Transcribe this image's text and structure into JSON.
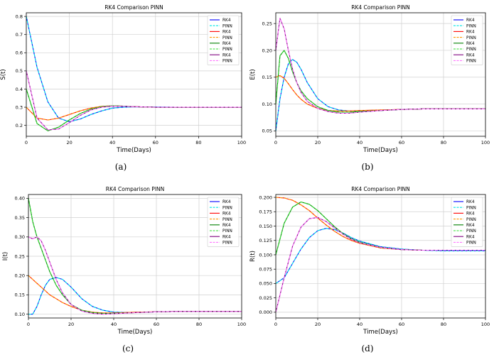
{
  "figure": {
    "subplots": [
      {
        "id": "a",
        "caption": "(a)",
        "title": "RK4 Comparison PINN",
        "xlabel": "Time(Days)",
        "ylabel": "S(t)",
        "legend": [
          "RK4",
          "PINN",
          "RK4",
          "PINN",
          "RK4",
          "PINN",
          "RK4",
          "PINN"
        ]
      },
      {
        "id": "b",
        "caption": "(b)",
        "title": "RK4 Comparison PINN",
        "xlabel": "Time(Days)",
        "ylabel": "E(t)",
        "legend": [
          "RK4",
          "PINN",
          "RK4",
          "PINN",
          "RK4",
          "PINN",
          "RK4",
          "PINN"
        ]
      },
      {
        "id": "c",
        "caption": "(c)",
        "title": "RK4 Comparison PINN",
        "xlabel": "Time(Days)",
        "ylabel": "I(t)",
        "legend": [
          "RK4",
          "PINN",
          "RK4",
          "PINN",
          "RK4",
          "PINN",
          "RK4",
          "PINN"
        ]
      },
      {
        "id": "d",
        "caption": "(d)",
        "title": "RK4 Comparison PINN",
        "xlabel": "Time(Days)",
        "ylabel": "R(t)",
        "legend": [
          "RK4",
          "PINN",
          "RK4",
          "PINN",
          "RK4",
          "PINN",
          "RK4",
          "PINN"
        ]
      }
    ]
  },
  "chart_data": [
    {
      "type": "line",
      "title": "RK4 Comparison PINN",
      "xlabel": "Time(Days)",
      "ylabel": "S(t)",
      "xlim": [
        0,
        100
      ],
      "ylim": [
        0.14,
        0.82
      ],
      "xticks": [
        0,
        20,
        40,
        60,
        80,
        100
      ],
      "yticks": [
        0.2,
        0.3,
        0.4,
        0.5,
        0.6,
        0.7,
        0.8
      ],
      "tick_decimals": 1,
      "grid": true,
      "legend_position": "top-right",
      "x": [
        0,
        5,
        10,
        15,
        20,
        25,
        30,
        35,
        40,
        45,
        50,
        60,
        70,
        80,
        90,
        100
      ],
      "series": [
        {
          "name": "RK4",
          "color": "#0000ff",
          "dash": "solid",
          "values": [
            0.8,
            0.52,
            0.33,
            0.24,
            0.22,
            0.235,
            0.26,
            0.28,
            0.295,
            0.3,
            0.302,
            0.301,
            0.3,
            0.3,
            0.3,
            0.3
          ]
        },
        {
          "name": "PINN",
          "color": "#00e5e5",
          "dash": "dashed",
          "values": [
            0.8,
            0.52,
            0.33,
            0.24,
            0.22,
            0.235,
            0.26,
            0.28,
            0.295,
            0.3,
            0.302,
            0.301,
            0.3,
            0.3,
            0.3,
            0.3
          ]
        },
        {
          "name": "RK4",
          "color": "#ff0000",
          "dash": "solid",
          "values": [
            0.3,
            0.24,
            0.23,
            0.24,
            0.26,
            0.28,
            0.295,
            0.305,
            0.308,
            0.306,
            0.303,
            0.3,
            0.3,
            0.3,
            0.3,
            0.3
          ]
        },
        {
          "name": "PINN",
          "color": "#ff9900",
          "dash": "dashed",
          "values": [
            0.3,
            0.24,
            0.23,
            0.24,
            0.26,
            0.28,
            0.295,
            0.305,
            0.308,
            0.306,
            0.303,
            0.3,
            0.3,
            0.3,
            0.3,
            0.3
          ]
        },
        {
          "name": "RK4",
          "color": "#008000",
          "dash": "solid",
          "values": [
            0.4,
            0.21,
            0.17,
            0.19,
            0.23,
            0.265,
            0.29,
            0.303,
            0.308,
            0.306,
            0.303,
            0.3,
            0.3,
            0.3,
            0.3,
            0.3
          ]
        },
        {
          "name": "PINN",
          "color": "#33dd33",
          "dash": "dashed",
          "values": [
            0.4,
            0.21,
            0.17,
            0.19,
            0.23,
            0.265,
            0.29,
            0.303,
            0.308,
            0.306,
            0.303,
            0.3,
            0.3,
            0.3,
            0.3,
            0.3
          ]
        },
        {
          "name": "RK4",
          "color": "#800080",
          "dash": "solid",
          "values": [
            0.5,
            0.24,
            0.175,
            0.18,
            0.215,
            0.255,
            0.285,
            0.3,
            0.306,
            0.305,
            0.303,
            0.3,
            0.3,
            0.3,
            0.3,
            0.3
          ]
        },
        {
          "name": "PINN",
          "color": "#ff77ff",
          "dash": "dashed",
          "values": [
            0.5,
            0.24,
            0.175,
            0.18,
            0.215,
            0.255,
            0.285,
            0.3,
            0.306,
            0.305,
            0.303,
            0.3,
            0.3,
            0.3,
            0.3,
            0.3
          ]
        }
      ]
    },
    {
      "type": "line",
      "title": "RK4 Comparison PINN",
      "xlabel": "Time(Days)",
      "ylabel": "E(t)",
      "xlim": [
        0,
        100
      ],
      "ylim": [
        0.04,
        0.27
      ],
      "xticks": [
        0,
        20,
        40,
        60,
        80,
        100
      ],
      "yticks": [
        0.05,
        0.1,
        0.15,
        0.2,
        0.25
      ],
      "tick_decimals": 2,
      "grid": true,
      "legend_position": "top-right",
      "x": [
        0,
        2,
        4,
        6,
        8,
        10,
        12,
        15,
        20,
        25,
        30,
        35,
        40,
        50,
        60,
        70,
        80,
        100
      ],
      "series": [
        {
          "name": "RK4",
          "color": "#0000ff",
          "dash": "solid",
          "values": [
            0.05,
            0.11,
            0.15,
            0.175,
            0.183,
            0.178,
            0.165,
            0.14,
            0.11,
            0.095,
            0.089,
            0.087,
            0.087,
            0.088,
            0.09,
            0.091,
            0.091,
            0.091
          ]
        },
        {
          "name": "PINN",
          "color": "#00e5e5",
          "dash": "dashed",
          "values": [
            0.05,
            0.11,
            0.15,
            0.175,
            0.183,
            0.178,
            0.165,
            0.14,
            0.11,
            0.095,
            0.089,
            0.087,
            0.087,
            0.088,
            0.09,
            0.091,
            0.091,
            0.091
          ]
        },
        {
          "name": "RK4",
          "color": "#ff0000",
          "dash": "solid",
          "values": [
            0.15,
            0.153,
            0.148,
            0.138,
            0.127,
            0.117,
            0.109,
            0.1,
            0.092,
            0.088,
            0.087,
            0.087,
            0.088,
            0.089,
            0.09,
            0.091,
            0.091,
            0.091
          ]
        },
        {
          "name": "PINN",
          "color": "#ff9900",
          "dash": "dashed",
          "values": [
            0.15,
            0.153,
            0.148,
            0.138,
            0.127,
            0.117,
            0.109,
            0.1,
            0.092,
            0.088,
            0.087,
            0.087,
            0.088,
            0.089,
            0.09,
            0.091,
            0.091,
            0.091
          ]
        },
        {
          "name": "RK4",
          "color": "#008000",
          "dash": "solid",
          "values": [
            0.1,
            0.19,
            0.2,
            0.185,
            0.16,
            0.14,
            0.125,
            0.11,
            0.095,
            0.088,
            0.085,
            0.085,
            0.086,
            0.088,
            0.09,
            0.091,
            0.091,
            0.091
          ]
        },
        {
          "name": "PINN",
          "color": "#33dd33",
          "dash": "dashed",
          "values": [
            0.1,
            0.19,
            0.2,
            0.185,
            0.16,
            0.14,
            0.125,
            0.11,
            0.095,
            0.088,
            0.085,
            0.085,
            0.086,
            0.088,
            0.09,
            0.091,
            0.091,
            0.091
          ]
        },
        {
          "name": "RK4",
          "color": "#800080",
          "dash": "solid",
          "values": [
            0.2,
            0.26,
            0.24,
            0.2,
            0.165,
            0.14,
            0.122,
            0.105,
            0.092,
            0.086,
            0.083,
            0.083,
            0.085,
            0.088,
            0.09,
            0.091,
            0.091,
            0.091
          ]
        },
        {
          "name": "PINN",
          "color": "#ff77ff",
          "dash": "dashed",
          "values": [
            0.2,
            0.26,
            0.24,
            0.2,
            0.165,
            0.14,
            0.122,
            0.105,
            0.092,
            0.086,
            0.083,
            0.083,
            0.085,
            0.088,
            0.09,
            0.091,
            0.091,
            0.091
          ]
        }
      ]
    },
    {
      "type": "line",
      "title": "RK4 Comparison PINN",
      "xlabel": "Time(Days)",
      "ylabel": "I(t)",
      "xlim": [
        0,
        100
      ],
      "ylim": [
        0.09,
        0.41
      ],
      "xticks": [
        0,
        20,
        40,
        60,
        80,
        100
      ],
      "yticks": [
        0.1,
        0.15,
        0.2,
        0.25,
        0.3,
        0.35,
        0.4
      ],
      "tick_decimals": 2,
      "grid": true,
      "legend_position": "top-right",
      "x": [
        0,
        2,
        4,
        6,
        8,
        10,
        13,
        16,
        20,
        25,
        30,
        35,
        40,
        50,
        60,
        70,
        80,
        100
      ],
      "series": [
        {
          "name": "RK4",
          "color": "#0000ff",
          "dash": "solid",
          "values": [
            0.1,
            0.1,
            0.12,
            0.15,
            0.175,
            0.19,
            0.195,
            0.19,
            0.17,
            0.14,
            0.12,
            0.11,
            0.105,
            0.104,
            0.106,
            0.107,
            0.107,
            0.107
          ]
        },
        {
          "name": "PINN",
          "color": "#00e5e5",
          "dash": "dashed",
          "values": [
            0.1,
            0.1,
            0.12,
            0.15,
            0.175,
            0.19,
            0.195,
            0.19,
            0.17,
            0.14,
            0.12,
            0.11,
            0.105,
            0.104,
            0.106,
            0.107,
            0.107,
            0.107
          ]
        },
        {
          "name": "RK4",
          "color": "#ff0000",
          "dash": "solid",
          "values": [
            0.2,
            0.19,
            0.18,
            0.17,
            0.16,
            0.15,
            0.14,
            0.13,
            0.12,
            0.11,
            0.105,
            0.103,
            0.103,
            0.105,
            0.106,
            0.107,
            0.107,
            0.107
          ]
        },
        {
          "name": "PINN",
          "color": "#ff9900",
          "dash": "dashed",
          "values": [
            0.2,
            0.19,
            0.18,
            0.17,
            0.16,
            0.15,
            0.14,
            0.13,
            0.12,
            0.11,
            0.105,
            0.103,
            0.103,
            0.105,
            0.106,
            0.107,
            0.107,
            0.107
          ]
        },
        {
          "name": "RK4",
          "color": "#008000",
          "dash": "solid",
          "values": [
            0.4,
            0.34,
            0.3,
            0.27,
            0.24,
            0.21,
            0.175,
            0.15,
            0.125,
            0.11,
            0.104,
            0.102,
            0.102,
            0.104,
            0.106,
            0.107,
            0.107,
            0.107
          ]
        },
        {
          "name": "PINN",
          "color": "#33dd33",
          "dash": "dashed",
          "values": [
            0.4,
            0.34,
            0.3,
            0.27,
            0.24,
            0.21,
            0.175,
            0.15,
            0.125,
            0.11,
            0.104,
            0.102,
            0.102,
            0.104,
            0.106,
            0.107,
            0.107,
            0.107
          ]
        },
        {
          "name": "RK4",
          "color": "#800080",
          "dash": "solid",
          "values": [
            0.3,
            0.295,
            0.3,
            0.29,
            0.265,
            0.235,
            0.19,
            0.155,
            0.125,
            0.108,
            0.102,
            0.1,
            0.101,
            0.104,
            0.106,
            0.107,
            0.107,
            0.107
          ]
        },
        {
          "name": "PINN",
          "color": "#ff77ff",
          "dash": "dashed",
          "values": [
            0.3,
            0.295,
            0.3,
            0.29,
            0.265,
            0.235,
            0.19,
            0.155,
            0.125,
            0.108,
            0.102,
            0.1,
            0.101,
            0.104,
            0.106,
            0.107,
            0.107,
            0.107
          ]
        }
      ]
    },
    {
      "type": "line",
      "title": "RK4 Comparison PINN",
      "xlabel": "Time(Days)",
      "ylabel": "R(t)",
      "xlim": [
        0,
        100
      ],
      "ylim": [
        -0.01,
        0.205
      ],
      "xticks": [
        0,
        20,
        40,
        60,
        80,
        100
      ],
      "yticks": [
        0.0,
        0.025,
        0.05,
        0.075,
        0.1,
        0.125,
        0.15,
        0.175,
        0.2
      ],
      "tick_decimals": 3,
      "grid": true,
      "legend_position": "top-right",
      "x": [
        0,
        4,
        8,
        12,
        16,
        20,
        24,
        28,
        32,
        36,
        40,
        50,
        60,
        70,
        80,
        100
      ],
      "series": [
        {
          "name": "RK4",
          "color": "#0000ff",
          "dash": "solid",
          "values": [
            0.05,
            0.06,
            0.085,
            0.11,
            0.13,
            0.142,
            0.146,
            0.144,
            0.138,
            0.13,
            0.124,
            0.114,
            0.11,
            0.108,
            0.107,
            0.107
          ]
        },
        {
          "name": "PINN",
          "color": "#00e5e5",
          "dash": "dashed",
          "values": [
            0.05,
            0.06,
            0.085,
            0.11,
            0.13,
            0.142,
            0.146,
            0.144,
            0.138,
            0.13,
            0.124,
            0.114,
            0.11,
            0.108,
            0.107,
            0.107
          ]
        },
        {
          "name": "RK4",
          "color": "#ff0000",
          "dash": "solid",
          "values": [
            0.2,
            0.199,
            0.195,
            0.187,
            0.177,
            0.164,
            0.152,
            0.141,
            0.132,
            0.125,
            0.12,
            0.112,
            0.109,
            0.108,
            0.108,
            0.108
          ]
        },
        {
          "name": "PINN",
          "color": "#ff9900",
          "dash": "dashed",
          "values": [
            0.2,
            0.199,
            0.195,
            0.187,
            0.177,
            0.164,
            0.152,
            0.141,
            0.132,
            0.125,
            0.12,
            0.112,
            0.109,
            0.108,
            0.108,
            0.108
          ]
        },
        {
          "name": "RK4",
          "color": "#008000",
          "dash": "solid",
          "values": [
            0.1,
            0.155,
            0.183,
            0.192,
            0.188,
            0.177,
            0.163,
            0.149,
            0.137,
            0.128,
            0.122,
            0.113,
            0.109,
            0.108,
            0.108,
            0.108
          ]
        },
        {
          "name": "PINN",
          "color": "#33dd33",
          "dash": "dashed",
          "values": [
            0.1,
            0.155,
            0.183,
            0.192,
            0.188,
            0.177,
            0.163,
            0.149,
            0.137,
            0.128,
            0.122,
            0.113,
            0.109,
            0.108,
            0.108,
            0.108
          ]
        },
        {
          "name": "RK4",
          "color": "#800080",
          "dash": "solid",
          "values": [
            0.0,
            0.06,
            0.115,
            0.148,
            0.163,
            0.165,
            0.158,
            0.147,
            0.136,
            0.127,
            0.121,
            0.113,
            0.109,
            0.108,
            0.108,
            0.108
          ]
        },
        {
          "name": "PINN",
          "color": "#ff77ff",
          "dash": "dashed",
          "values": [
            0.0,
            0.06,
            0.115,
            0.148,
            0.163,
            0.165,
            0.158,
            0.147,
            0.136,
            0.127,
            0.121,
            0.113,
            0.109,
            0.108,
            0.108,
            0.108
          ]
        }
      ]
    }
  ]
}
